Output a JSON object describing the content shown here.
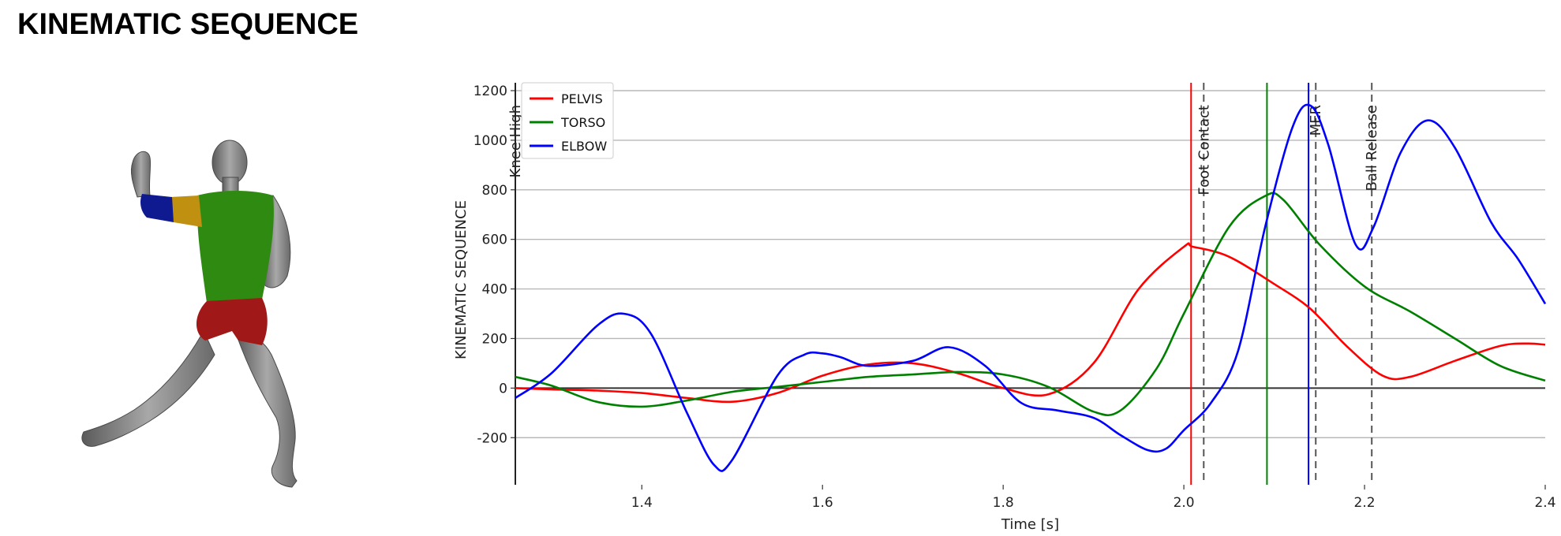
{
  "page": {
    "title": "KINEMATIC SEQUENCE"
  },
  "figure": {
    "icon": "pitcher-3d-model-icon",
    "segment_colors": {
      "pelvis": "#a01818",
      "torso": "#2f8a12",
      "upper_arm": "#c09010",
      "forearm": "#101a90",
      "body": "#8a8a8a"
    }
  },
  "chart_data": {
    "type": "line",
    "title": "",
    "xlabel": "Time [s]",
    "ylabel": "KINEMATIC SEQUENCE",
    "xlim": [
      1.26,
      2.4
    ],
    "ylim": [
      -390,
      1200
    ],
    "xticks": [
      1.4,
      1.6,
      1.8,
      2.0,
      2.2,
      2.4
    ],
    "xtick_labels": [
      "1.4",
      "1.6",
      "1.8",
      "2.0",
      "2.2",
      "2.4"
    ],
    "yticks": [
      -200,
      0,
      200,
      400,
      600,
      800,
      1000,
      1200
    ],
    "ytick_labels": [
      "-200",
      "0",
      "200",
      "400",
      "600",
      "800",
      "1000",
      "1200"
    ],
    "grid": "horizontal",
    "legend_position": "top-left",
    "series": [
      {
        "name": "PELVIS",
        "color": "#ff0000",
        "x": [
          1.26,
          1.3,
          1.35,
          1.4,
          1.45,
          1.5,
          1.55,
          1.6,
          1.65,
          1.7,
          1.75,
          1.8,
          1.85,
          1.9,
          1.95,
          2.0,
          2.01,
          2.05,
          2.1,
          2.14,
          2.18,
          2.22,
          2.25,
          2.3,
          2.35,
          2.38,
          2.4
        ],
        "y": [
          0,
          -5,
          -10,
          -20,
          -40,
          -55,
          -20,
          50,
          95,
          100,
          60,
          0,
          -25,
          100,
          400,
          570,
          570,
          530,
          420,
          320,
          170,
          50,
          45,
          110,
          170,
          180,
          175
        ]
      },
      {
        "name": "TORSO",
        "color": "#008000",
        "x": [
          1.26,
          1.3,
          1.35,
          1.4,
          1.45,
          1.5,
          1.55,
          1.6,
          1.65,
          1.7,
          1.75,
          1.8,
          1.85,
          1.9,
          1.93,
          1.97,
          2.0,
          2.05,
          2.09,
          2.11,
          2.15,
          2.2,
          2.25,
          2.3,
          2.35,
          2.4
        ],
        "y": [
          45,
          10,
          -55,
          -75,
          -50,
          -15,
          5,
          25,
          45,
          55,
          65,
          55,
          5,
          -95,
          -90,
          80,
          300,
          650,
          775,
          760,
          580,
          410,
          310,
          200,
          90,
          30
        ]
      },
      {
        "name": "ELBOW",
        "color": "#0000ff",
        "x": [
          1.26,
          1.3,
          1.35,
          1.38,
          1.41,
          1.45,
          1.48,
          1.5,
          1.55,
          1.58,
          1.6,
          1.62,
          1.65,
          1.7,
          1.74,
          1.78,
          1.82,
          1.86,
          1.9,
          1.93,
          1.96,
          1.98,
          2.0,
          2.03,
          2.06,
          2.09,
          2.12,
          2.14,
          2.16,
          2.19,
          2.21,
          2.24,
          2.27,
          2.3,
          2.34,
          2.37,
          2.4
        ],
        "y": [
          -40,
          60,
          250,
          300,
          220,
          -100,
          -310,
          -290,
          50,
          135,
          140,
          125,
          90,
          110,
          165,
          90,
          -60,
          -90,
          -120,
          -190,
          -250,
          -245,
          -170,
          -60,
          150,
          650,
          1050,
          1140,
          980,
          580,
          650,
          950,
          1080,
          970,
          670,
          520,
          340
        ]
      }
    ],
    "events": [
      {
        "label": "Knee High",
        "x": 1.26,
        "color": "#222222",
        "style": "solid"
      },
      {
        "label": "",
        "x": 2.008,
        "color": "#ff0000",
        "style": "solid"
      },
      {
        "label": "Foot Contact",
        "x": 2.022,
        "color": "#555555",
        "style": "dashed"
      },
      {
        "label": "",
        "x": 2.092,
        "color": "#008000",
        "style": "solid"
      },
      {
        "label": "",
        "x": 2.138,
        "color": "#0000ff",
        "style": "solid"
      },
      {
        "label": "MER",
        "x": 2.146,
        "color": "#555555",
        "style": "dashed"
      },
      {
        "label": "Ball Release",
        "x": 2.208,
        "color": "#555555",
        "style": "dashed"
      }
    ]
  }
}
